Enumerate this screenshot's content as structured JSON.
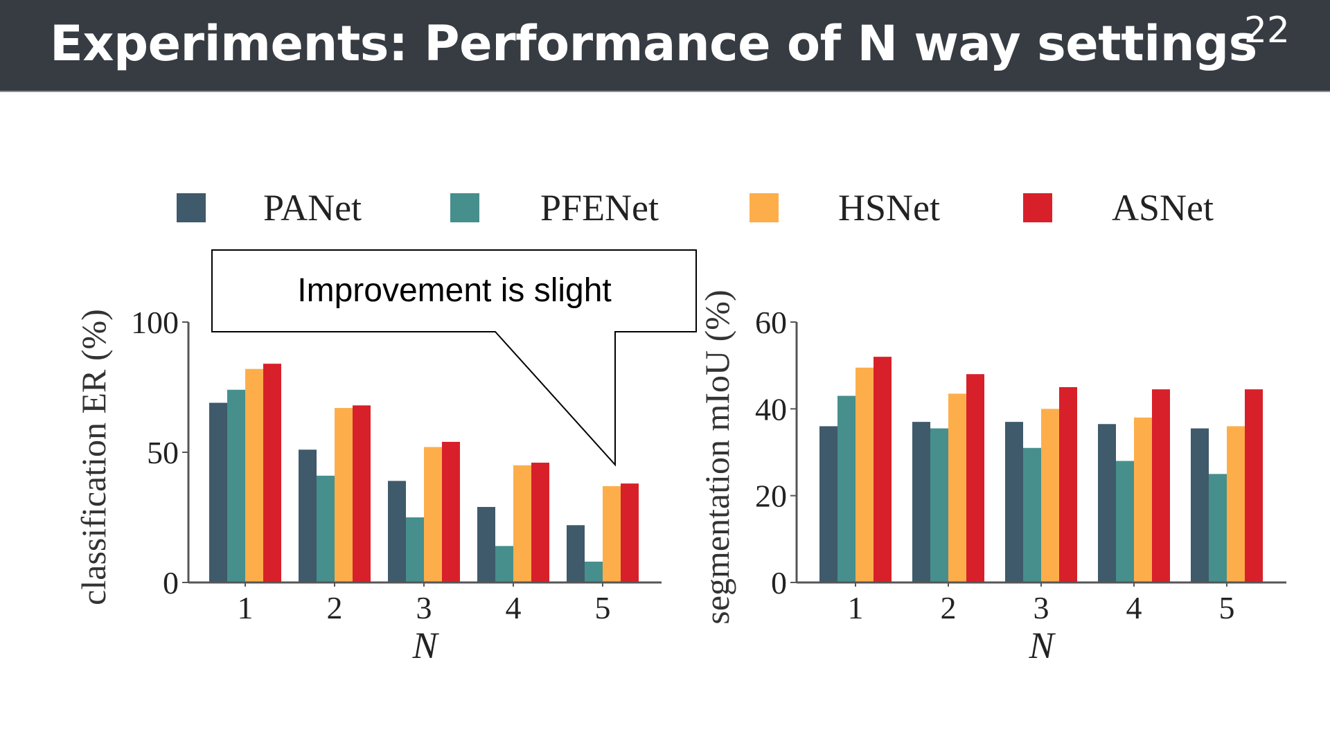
{
  "slide": {
    "title": "Experiments: Performance of N way settings",
    "page_number": "22"
  },
  "callout": {
    "text": "Improvement is slight"
  },
  "legend": [
    {
      "name": "PANet",
      "color": "#3e5a6b"
    },
    {
      "name": "PFENet",
      "color": "#468f8d"
    },
    {
      "name": "HSNet",
      "color": "#fdae4b"
    },
    {
      "name": "ASNet",
      "color": "#d8202a"
    }
  ],
  "chart_data": [
    {
      "type": "bar",
      "title": "",
      "xlabel": "N",
      "ylabel": "classification ER (%)",
      "ylim": [
        0,
        100
      ],
      "yticks": [
        0,
        50,
        100
      ],
      "categories": [
        "1",
        "2",
        "3",
        "4",
        "5"
      ],
      "series": [
        {
          "name": "PANet",
          "values": [
            69,
            51,
            39,
            29,
            22
          ]
        },
        {
          "name": "PFENet",
          "values": [
            74,
            41,
            25,
            14,
            8
          ]
        },
        {
          "name": "HSNet",
          "values": [
            82,
            67,
            52,
            45,
            37
          ]
        },
        {
          "name": "ASNet",
          "values": [
            84,
            68,
            54,
            46,
            38
          ]
        }
      ]
    },
    {
      "type": "bar",
      "title": "",
      "xlabel": "N",
      "ylabel": "segmentation mIoU (%)",
      "ylim": [
        0,
        60
      ],
      "yticks": [
        0,
        20,
        40,
        60
      ],
      "categories": [
        "1",
        "2",
        "3",
        "4",
        "5"
      ],
      "series": [
        {
          "name": "PANet",
          "values": [
            36,
            37,
            37,
            36.5,
            35.5
          ]
        },
        {
          "name": "PFENet",
          "values": [
            43,
            35.5,
            31,
            28,
            25
          ]
        },
        {
          "name": "HSNet",
          "values": [
            49.5,
            43.5,
            40,
            38,
            36
          ]
        },
        {
          "name": "ASNet",
          "values": [
            52,
            48,
            45,
            44.5,
            44.5
          ]
        }
      ]
    }
  ]
}
